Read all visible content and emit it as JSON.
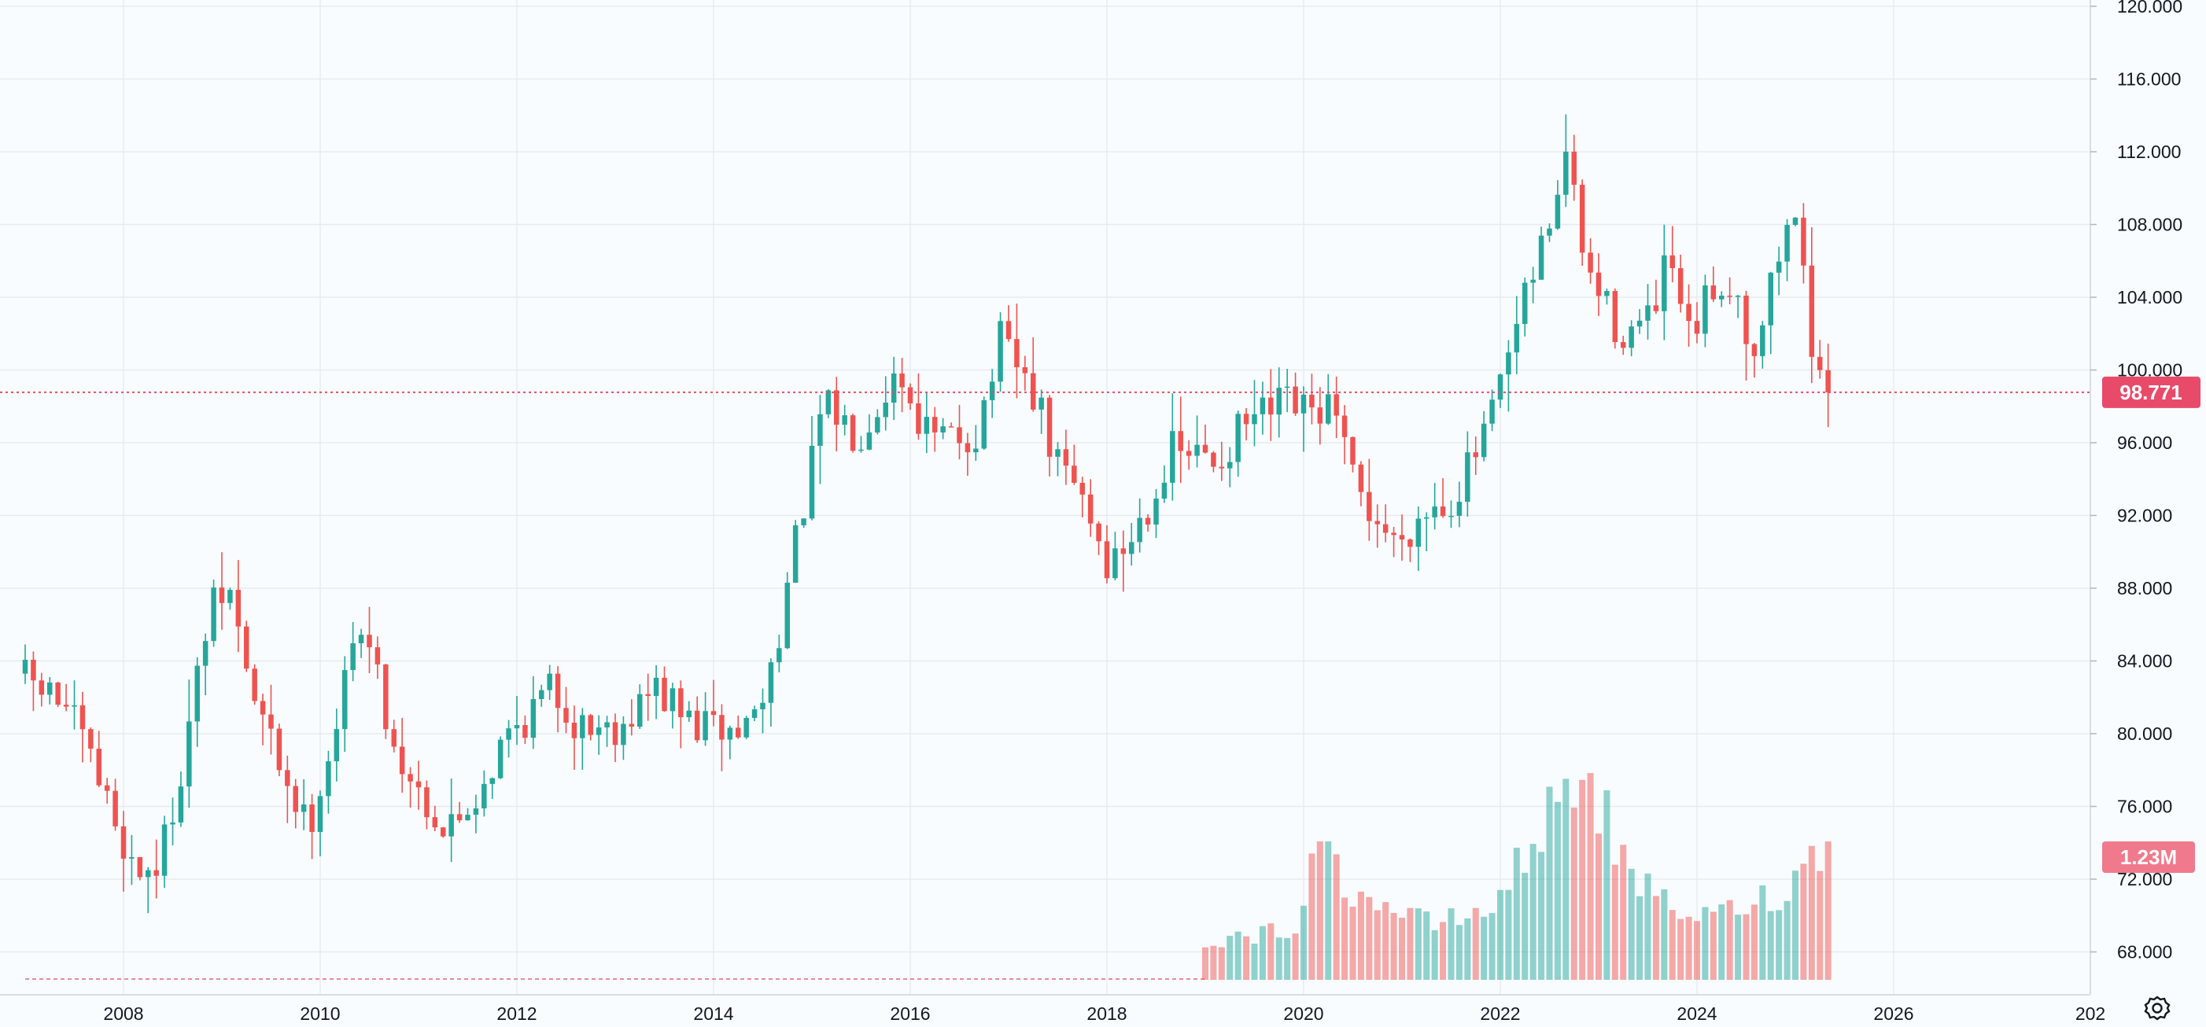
{
  "chart_data": {
    "type": "candlestick",
    "title": "",
    "interval": "monthly",
    "x_axis": {
      "tick_labels": [
        "2008",
        "2010",
        "2012",
        "2014",
        "2016",
        "2018",
        "2020",
        "2022",
        "2024",
        "2026",
        "202"
      ]
    },
    "y_axis": {
      "range": [
        65.5,
        120.0
      ],
      "tick_labels": [
        "120.000",
        "116.000",
        "112.000",
        "108.000",
        "104.000",
        "100.000",
        "96.000",
        "92.000",
        "88.000",
        "84.000",
        "80.000",
        "76.000",
        "72.000",
        "68.000"
      ],
      "tick_values": [
        120,
        116,
        112,
        108,
        104,
        100,
        96,
        92,
        88,
        84,
        80,
        76,
        72,
        68
      ]
    },
    "last_price": {
      "value": 98.771,
      "label": "98.771"
    },
    "last_volume": {
      "value": 1230000,
      "label": "1.23M"
    },
    "colors": {
      "up": "#26a69a",
      "down": "#ef5350",
      "up_volume": "#26a69a",
      "down_volume": "#ef5350",
      "price_line": "#e84b6a",
      "grid": "#e6ebf0"
    },
    "price_anchors": [
      {
        "t": 2007.0,
        "p": 83.3
      },
      {
        "t": 2007.5,
        "p": 81.5
      },
      {
        "t": 2007.9,
        "p": 76.5
      },
      {
        "t": 2008.2,
        "p": 72.5
      },
      {
        "t": 2008.45,
        "p": 72.8
      },
      {
        "t": 2008.7,
        "p": 79.0
      },
      {
        "t": 2008.95,
        "p": 86.5
      },
      {
        "t": 2009.15,
        "p": 88.0
      },
      {
        "t": 2009.4,
        "p": 82.0
      },
      {
        "t": 2009.7,
        "p": 78.0
      },
      {
        "t": 2009.95,
        "p": 74.8
      },
      {
        "t": 2010.2,
        "p": 79.5
      },
      {
        "t": 2010.5,
        "p": 86.5
      },
      {
        "t": 2010.85,
        "p": 79.0
      },
      {
        "t": 2011.2,
        "p": 76.0
      },
      {
        "t": 2011.35,
        "p": 74.5
      },
      {
        "t": 2011.65,
        "p": 76.5
      },
      {
        "t": 2012.0,
        "p": 80.0
      },
      {
        "t": 2012.45,
        "p": 82.5
      },
      {
        "t": 2012.7,
        "p": 80.5
      },
      {
        "t": 2013.1,
        "p": 80.5
      },
      {
        "t": 2013.5,
        "p": 82.5
      },
      {
        "t": 2013.85,
        "p": 80.5
      },
      {
        "t": 2014.35,
        "p": 80.0
      },
      {
        "t": 2014.6,
        "p": 82.0
      },
      {
        "t": 2014.85,
        "p": 88.5
      },
      {
        "t": 2015.2,
        "p": 98.0
      },
      {
        "t": 2015.55,
        "p": 96.5
      },
      {
        "t": 2015.95,
        "p": 100.0
      },
      {
        "t": 2016.3,
        "p": 96.0
      },
      {
        "t": 2016.75,
        "p": 96.5
      },
      {
        "t": 2017.0,
        "p": 101.5
      },
      {
        "t": 2017.35,
        "p": 98.5
      },
      {
        "t": 2017.55,
        "p": 95.0
      },
      {
        "t": 2017.85,
        "p": 93.0
      },
      {
        "t": 2018.1,
        "p": 89.0
      },
      {
        "t": 2018.35,
        "p": 91.0
      },
      {
        "t": 2018.75,
        "p": 95.5
      },
      {
        "t": 2019.2,
        "p": 95.0
      },
      {
        "t": 2019.5,
        "p": 97.0
      },
      {
        "t": 2019.9,
        "p": 98.0
      },
      {
        "t": 2020.15,
        "p": 97.5
      },
      {
        "t": 2020.35,
        "p": 98.0
      },
      {
        "t": 2020.6,
        "p": 93.5
      },
      {
        "t": 2021.0,
        "p": 90.5
      },
      {
        "t": 2021.35,
        "p": 92.5
      },
      {
        "t": 2021.6,
        "p": 93.0
      },
      {
        "t": 2021.95,
        "p": 96.5
      },
      {
        "t": 2022.3,
        "p": 103.0
      },
      {
        "t": 2022.6,
        "p": 108.5
      },
      {
        "t": 2022.75,
        "p": 112.0
      },
      {
        "t": 2022.95,
        "p": 105.5
      },
      {
        "t": 2023.3,
        "p": 102.0
      },
      {
        "t": 2023.6,
        "p": 102.5
      },
      {
        "t": 2023.8,
        "p": 106.0
      },
      {
        "t": 2024.0,
        "p": 101.5
      },
      {
        "t": 2024.25,
        "p": 104.5
      },
      {
        "t": 2024.45,
        "p": 105.0
      },
      {
        "t": 2024.65,
        "p": 101.0
      },
      {
        "t": 2024.8,
        "p": 104.0
      },
      {
        "t": 2025.0,
        "p": 108.0
      },
      {
        "t": 2025.15,
        "p": 107.5
      },
      {
        "t": 2025.3,
        "p": 98.8
      }
    ],
    "volume_profile": [
      {
        "t": 2019.0,
        "v": 0.15
      },
      {
        "t": 2019.9,
        "v": 0.2
      },
      {
        "t": 2020.15,
        "v": 0.55
      },
      {
        "t": 2020.45,
        "v": 0.36
      },
      {
        "t": 2021.3,
        "v": 0.22
      },
      {
        "t": 2021.9,
        "v": 0.28
      },
      {
        "t": 2022.5,
        "v": 0.65
      },
      {
        "t": 2022.85,
        "v": 0.88
      },
      {
        "t": 2023.3,
        "v": 0.4
      },
      {
        "t": 2024.0,
        "v": 0.24
      },
      {
        "t": 2024.9,
        "v": 0.35
      },
      {
        "t": 2025.3,
        "v": 0.55
      }
    ]
  }
}
